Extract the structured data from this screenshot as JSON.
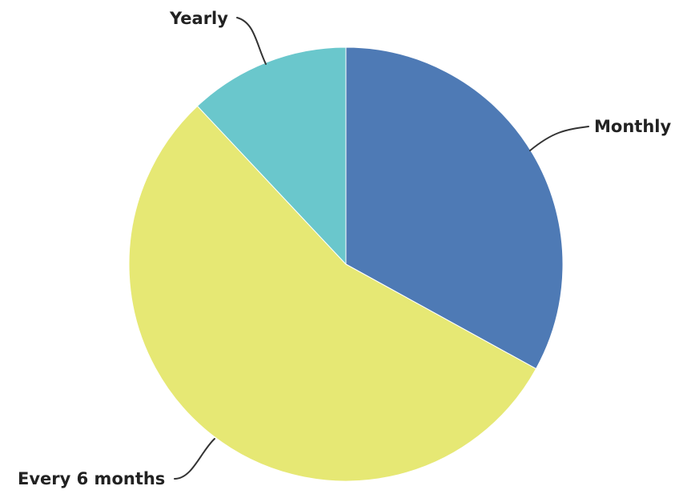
{
  "chart_data": {
    "type": "pie",
    "title": "",
    "start_angle_deg": 0,
    "direction": "clockwise",
    "legend": "none",
    "slices": [
      {
        "label": "Monthly",
        "value": 33,
        "color": "#4E7AB5"
      },
      {
        "label": "Every 6 months",
        "value": 55,
        "color": "#E6E874"
      },
      {
        "label": "Yearly",
        "value": 12,
        "color": "#6AC7CC"
      }
    ]
  }
}
